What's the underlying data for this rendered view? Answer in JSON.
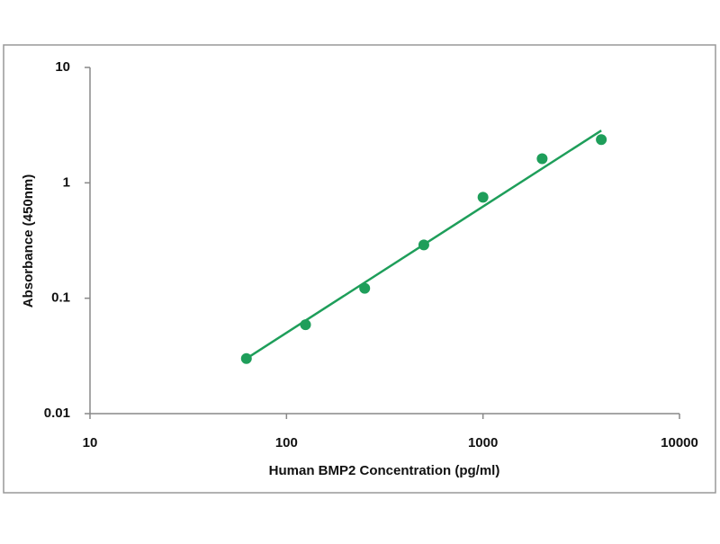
{
  "chart_data": {
    "type": "scatter",
    "x_label": "Human BMP2 Concentration (pg/ml)",
    "y_label": "Absorbance (450nm)",
    "x": [
      62.5,
      125,
      250,
      500,
      1000,
      2000,
      4000
    ],
    "values": [
      0.03,
      0.059,
      0.122,
      0.29,
      0.75,
      1.62,
      2.37
    ],
    "color": "#1e9e5a",
    "fit": {
      "x": [
        62.5,
        4000
      ],
      "values": [
        0.03,
        2.84
      ]
    },
    "xlim": [
      10,
      10000
    ],
    "ylim": [
      0.01,
      10
    ],
    "xticks": [
      10,
      100,
      1000,
      10000
    ],
    "yticks": [
      0.01,
      0.1,
      1,
      10
    ],
    "xscale": "log",
    "yscale": "log"
  }
}
